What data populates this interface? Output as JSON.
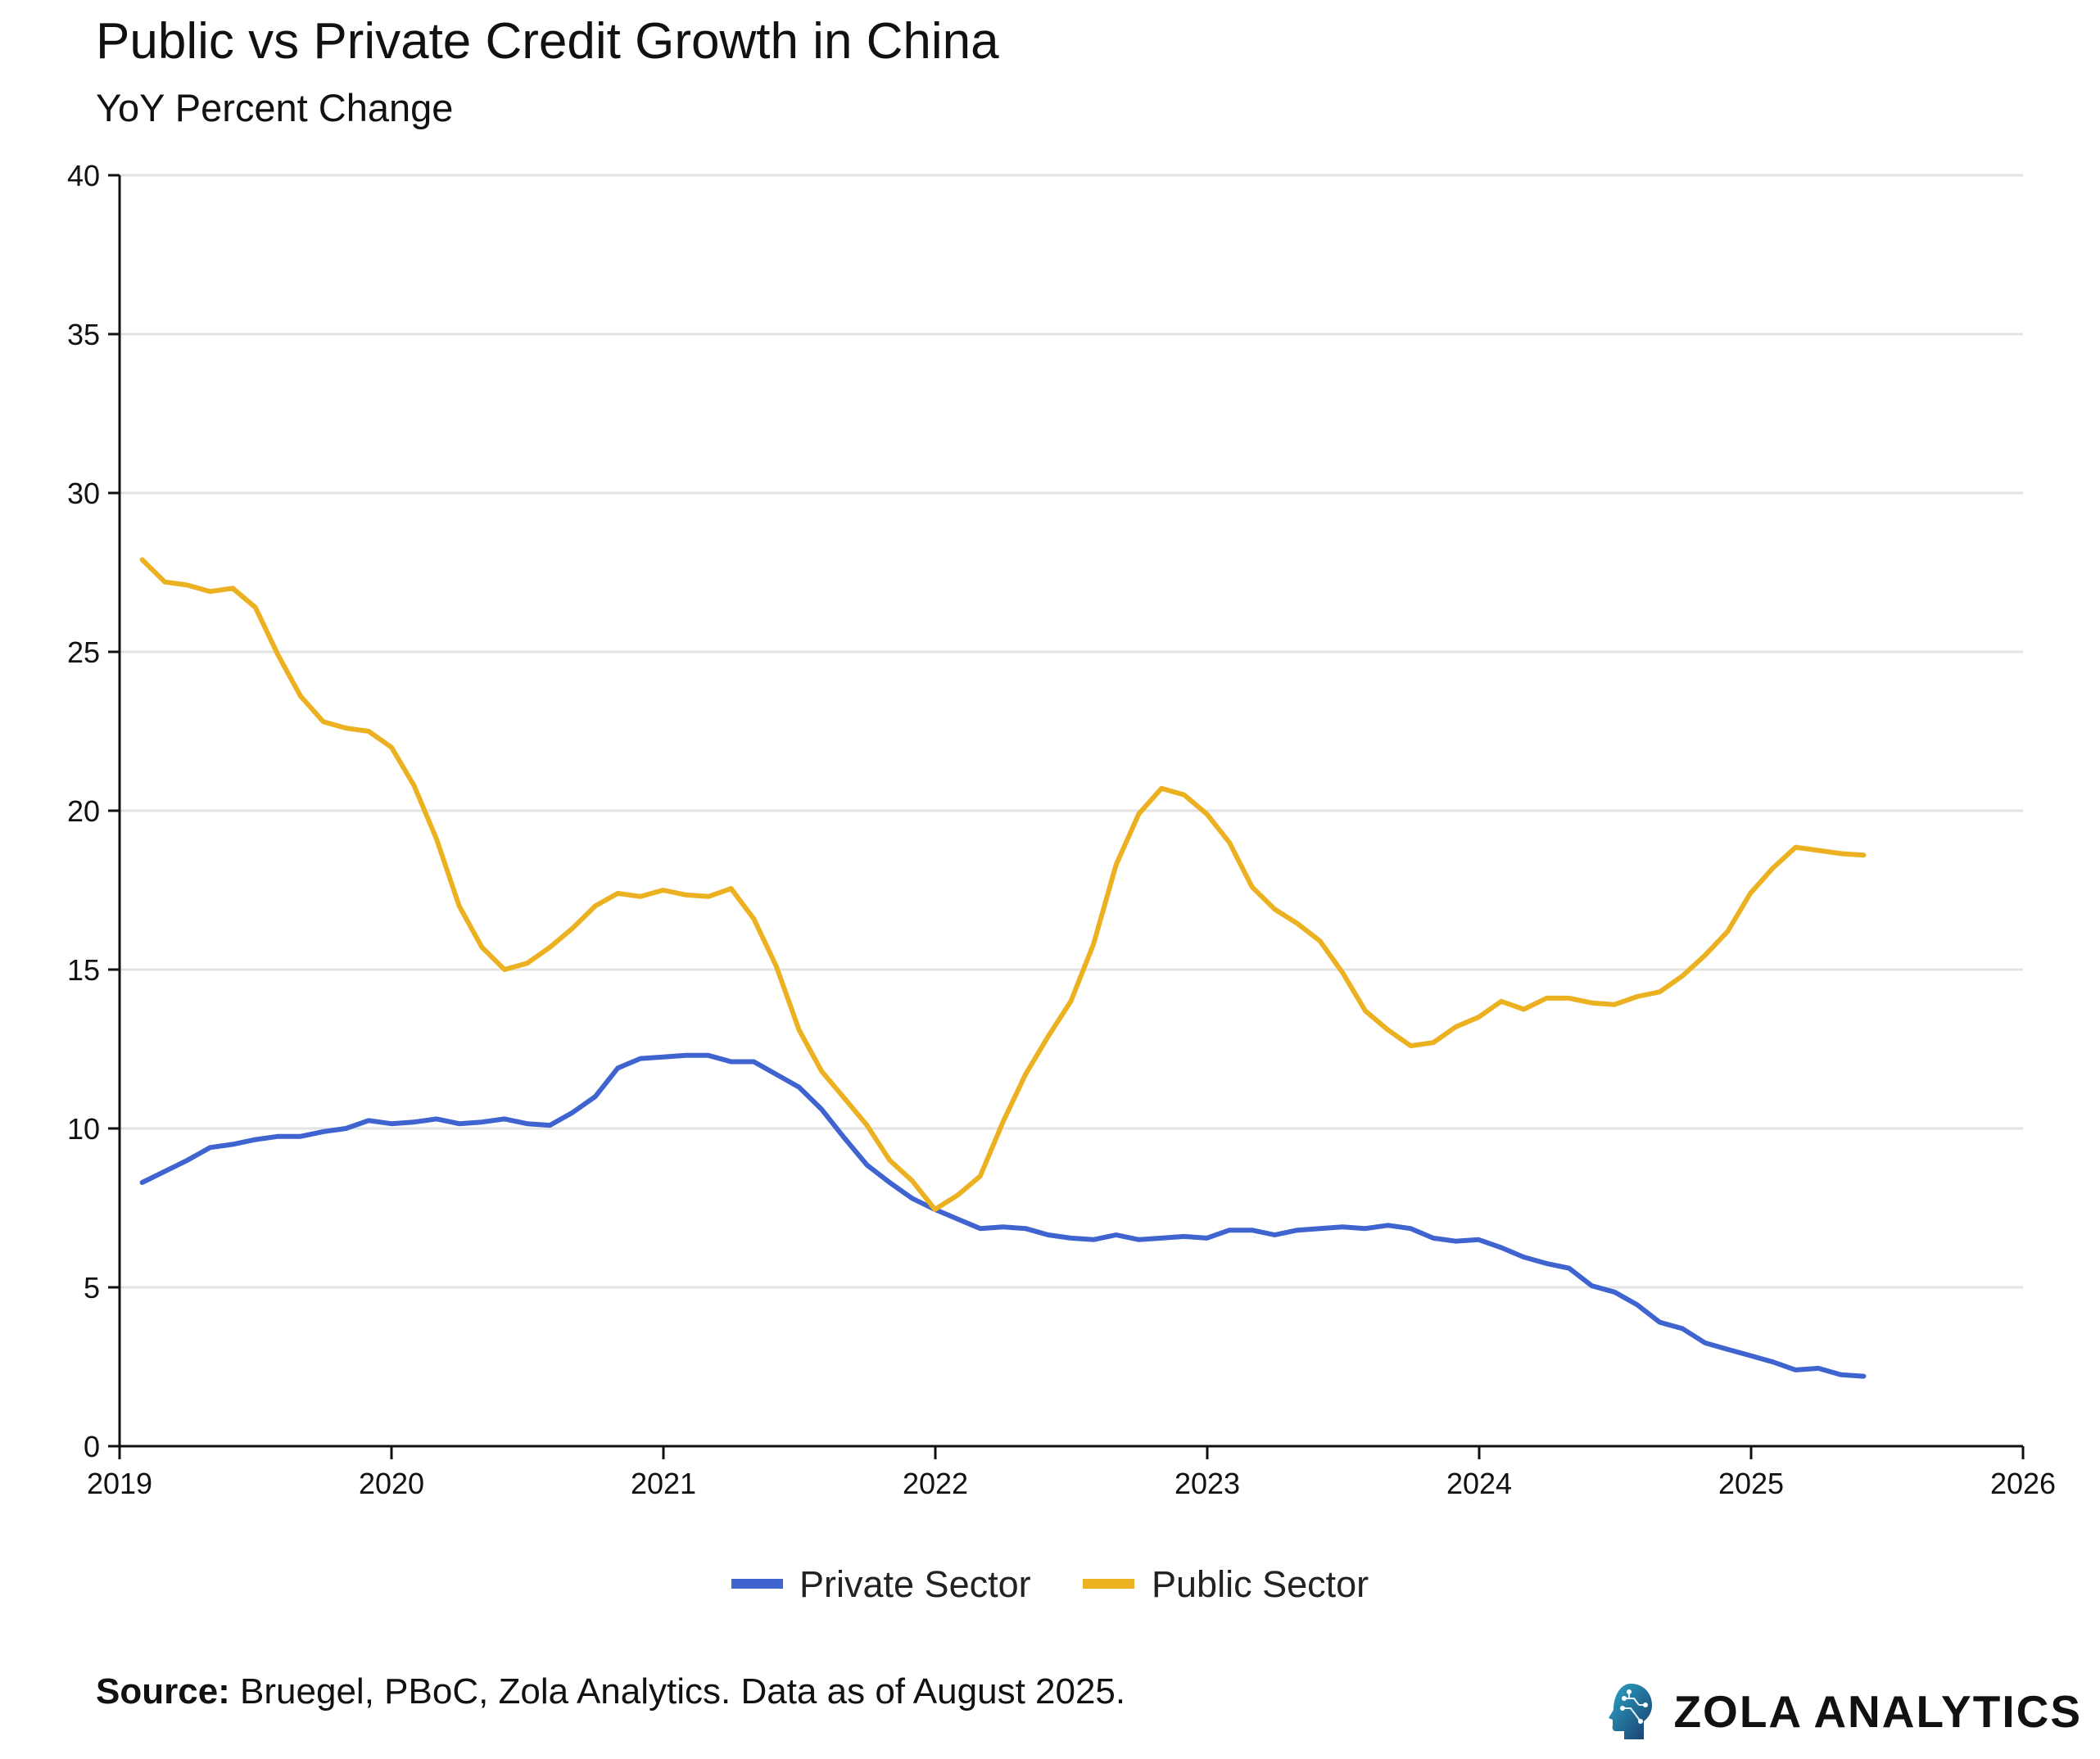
{
  "title": "Public vs Private Credit Growth in China",
  "subtitle": "YoY Percent Change",
  "source": {
    "label": "Source:",
    "text": " Bruegel, PBoC, Zola Analytics. Data as of August 2025."
  },
  "brand": {
    "name": "ZOLA ANALYTICS",
    "icon": "brain-circuit-head-icon"
  },
  "colors": {
    "private": "#3f63cf",
    "public": "#ecb121",
    "grid": "#e3e3e3",
    "axis": "#111111"
  },
  "chart_data": {
    "type": "line",
    "title": "Public vs Private Credit Growth in China",
    "subtitle": "YoY Percent Change",
    "xlabel": "",
    "ylabel": "",
    "xlim": [
      2019,
      2026
    ],
    "ylim": [
      0,
      40
    ],
    "x_ticks": [
      2019,
      2020,
      2021,
      2022,
      2023,
      2024,
      2025,
      2026
    ],
    "y_ticks": [
      0,
      5,
      10,
      15,
      20,
      25,
      30,
      35,
      40
    ],
    "grid": "horizontal",
    "legend": "bottom-center",
    "x_start": 2019.083,
    "x_step": 0.0833,
    "series": [
      {
        "name": "Private Sector",
        "color": "#3f63cf",
        "values": [
          8.3,
          8.65,
          9.0,
          9.4,
          9.5,
          9.65,
          9.75,
          9.75,
          9.9,
          10.0,
          10.25,
          10.15,
          10.2,
          10.3,
          10.15,
          10.2,
          10.3,
          10.15,
          10.1,
          10.5,
          11.0,
          11.9,
          12.2,
          12.25,
          12.3,
          12.3,
          12.1,
          12.1,
          11.7,
          11.3,
          10.6,
          9.7,
          8.85,
          8.3,
          7.8,
          7.45,
          7.15,
          6.85,
          6.9,
          6.85,
          6.65,
          6.55,
          6.5,
          6.65,
          6.5,
          6.55,
          6.6,
          6.55,
          6.8,
          6.8,
          6.65,
          6.8,
          6.85,
          6.9,
          6.85,
          6.95,
          6.85,
          6.55,
          6.45,
          6.5,
          6.25,
          5.95,
          5.75,
          5.6,
          5.05,
          4.85,
          4.45,
          3.9,
          3.7,
          3.25,
          3.05,
          2.85,
          2.65,
          2.4,
          2.45,
          2.25,
          2.2
        ]
      },
      {
        "name": "Public Sector",
        "color": "#ecb121",
        "values": [
          27.9,
          27.2,
          27.1,
          26.9,
          27.0,
          26.4,
          24.9,
          23.6,
          22.8,
          22.6,
          22.5,
          22.0,
          20.8,
          19.1,
          17.0,
          15.7,
          15.0,
          15.2,
          15.7,
          16.3,
          17.0,
          17.4,
          17.3,
          17.5,
          17.35,
          17.3,
          17.55,
          16.6,
          15.1,
          13.1,
          11.8,
          10.95,
          10.1,
          9.0,
          8.35,
          7.45,
          7.9,
          8.5,
          10.2,
          11.7,
          12.9,
          14.0,
          15.8,
          18.3,
          19.9,
          20.7,
          20.5,
          19.9,
          19.0,
          17.6,
          16.9,
          16.45,
          15.9,
          14.9,
          13.7,
          13.1,
          12.6,
          12.7,
          13.2,
          13.5,
          14.0,
          13.75,
          14.1,
          14.1,
          13.95,
          13.9,
          14.15,
          14.3,
          14.8,
          15.45,
          16.2,
          17.4,
          18.2,
          18.85,
          18.75,
          18.65,
          18.6
        ]
      }
    ]
  }
}
